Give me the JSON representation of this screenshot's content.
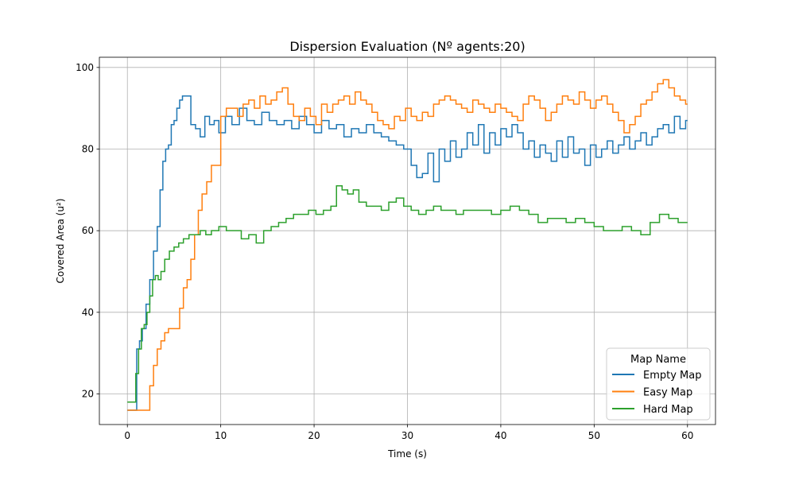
{
  "chart_data": {
    "type": "line",
    "title": "Dispersion Evaluation (Nº agents:20)",
    "xlabel": "Time (s)",
    "ylabel": "Covered Area (u²)",
    "xlim": [
      -3,
      63
    ],
    "ylim": [
      12.5,
      102.5
    ],
    "xticks": [
      0,
      10,
      20,
      30,
      40,
      50,
      60
    ],
    "yticks": [
      20,
      40,
      60,
      80,
      100
    ],
    "grid": true,
    "step": "post",
    "legend": {
      "title": "Map Name",
      "placement": "lower right"
    },
    "series": [
      {
        "name": "Empty Map",
        "color": "#1f77b4",
        "x": [
          0,
          0.8,
          1.0,
          1.3,
          1.6,
          2.0,
          2.4,
          2.8,
          3.2,
          3.5,
          3.8,
          4.1,
          4.4,
          4.7,
          5.0,
          5.3,
          5.6,
          5.9,
          6.3,
          6.8,
          7.3,
          7.8,
          8.3,
          8.8,
          9.3,
          9.8,
          10.5,
          11.2,
          12.0,
          12.8,
          13.6,
          14.4,
          15.2,
          16.0,
          16.8,
          17.6,
          18.4,
          19.2,
          20.0,
          20.8,
          21.6,
          22.4,
          23.2,
          24.0,
          24.8,
          25.6,
          26.4,
          27.2,
          28.0,
          28.8,
          29.6,
          30.4,
          31.0,
          31.6,
          32.2,
          32.8,
          33.4,
          34.0,
          34.6,
          35.2,
          35.8,
          36.4,
          37.0,
          37.6,
          38.2,
          38.8,
          39.4,
          40.0,
          40.6,
          41.2,
          41.8,
          42.4,
          43.0,
          43.6,
          44.2,
          44.8,
          45.4,
          46.0,
          46.6,
          47.2,
          47.8,
          48.4,
          49.0,
          49.6,
          50.2,
          50.8,
          51.4,
          52.0,
          52.6,
          53.2,
          53.8,
          54.4,
          55.0,
          55.6,
          56.2,
          56.8,
          57.4,
          58.0,
          58.6,
          59.2,
          59.8
        ],
        "y": [
          16,
          16,
          31,
          33,
          36,
          42,
          48,
          55,
          61,
          70,
          77,
          80,
          81,
          86,
          87,
          90,
          92,
          93,
          93,
          86,
          85,
          83,
          88,
          86,
          87,
          84,
          88,
          86,
          90,
          87,
          86,
          89,
          87,
          86,
          87,
          85,
          88,
          86,
          84,
          87,
          85,
          86,
          83,
          85,
          84,
          86,
          84,
          83,
          82,
          81,
          80,
          76,
          73,
          74,
          79,
          72,
          80,
          77,
          82,
          78,
          80,
          84,
          81,
          86,
          79,
          84,
          81,
          85,
          83,
          86,
          84,
          80,
          82,
          78,
          81,
          79,
          77,
          82,
          78,
          83,
          79,
          80,
          76,
          81,
          78,
          80,
          82,
          79,
          81,
          83,
          80,
          82,
          84,
          81,
          83,
          85,
          86,
          84,
          88,
          85,
          87
        ]
      },
      {
        "name": "Easy Map",
        "color": "#ff7f0e",
        "x": [
          0,
          2.0,
          2.4,
          2.8,
          3.2,
          3.6,
          4.0,
          4.4,
          5.0,
          5.6,
          6.0,
          6.4,
          6.8,
          7.2,
          7.6,
          8.0,
          8.5,
          9.0,
          9.5,
          10.0,
          10.6,
          11.2,
          11.8,
          12.4,
          13.0,
          13.6,
          14.2,
          14.8,
          15.4,
          16.0,
          16.6,
          17.2,
          17.8,
          18.4,
          19.0,
          19.6,
          20.2,
          20.8,
          21.4,
          22.0,
          22.6,
          23.2,
          23.8,
          24.4,
          25.0,
          25.6,
          26.2,
          26.8,
          27.4,
          28.0,
          28.6,
          29.2,
          29.8,
          30.4,
          31.0,
          31.6,
          32.2,
          32.8,
          33.4,
          34.0,
          34.6,
          35.2,
          35.8,
          36.4,
          37.0,
          37.6,
          38.2,
          38.8,
          39.4,
          40.0,
          40.6,
          41.2,
          41.8,
          42.4,
          43.0,
          43.6,
          44.2,
          44.8,
          45.4,
          46.0,
          46.6,
          47.2,
          47.8,
          48.4,
          49.0,
          49.6,
          50.2,
          50.8,
          51.4,
          52.0,
          52.6,
          53.2,
          53.8,
          54.4,
          55.0,
          55.6,
          56.2,
          56.8,
          57.4,
          58.0,
          58.6,
          59.2,
          59.8
        ],
        "y": [
          16,
          16,
          22,
          27,
          31,
          33,
          35,
          36,
          36,
          41,
          46,
          48,
          53,
          59,
          65,
          69,
          72,
          76,
          76,
          88,
          90,
          90,
          88,
          91,
          92,
          90,
          93,
          91,
          92,
          94,
          95,
          91,
          88,
          87,
          90,
          88,
          86,
          91,
          89,
          91,
          92,
          93,
          91,
          94,
          92,
          91,
          89,
          87,
          86,
          85,
          88,
          87,
          90,
          88,
          87,
          89,
          88,
          91,
          92,
          93,
          92,
          91,
          90,
          89,
          92,
          91,
          90,
          89,
          91,
          90,
          89,
          88,
          87,
          91,
          93,
          92,
          90,
          87,
          89,
          91,
          93,
          92,
          91,
          94,
          92,
          90,
          92,
          93,
          91,
          89,
          87,
          84,
          86,
          88,
          91,
          92,
          94,
          96,
          97,
          95,
          93,
          92,
          91
        ]
      },
      {
        "name": "Hard Map",
        "color": "#2ca02c",
        "x": [
          0,
          0.6,
          0.9,
          1.2,
          1.5,
          1.8,
          2.1,
          2.4,
          2.7,
          3.0,
          3.3,
          3.6,
          4.0,
          4.5,
          5.0,
          5.5,
          6.0,
          6.6,
          7.2,
          7.8,
          8.4,
          9.0,
          9.8,
          10.6,
          11.4,
          12.2,
          13.0,
          13.8,
          14.6,
          15.4,
          16.2,
          17.0,
          17.8,
          18.6,
          19.4,
          20.2,
          21.0,
          21.8,
          22.4,
          23.0,
          23.6,
          24.2,
          24.8,
          25.6,
          26.4,
          27.2,
          28.0,
          28.8,
          29.6,
          30.4,
          31.2,
          32.0,
          32.8,
          33.6,
          34.4,
          35.2,
          36.0,
          37.0,
          38.0,
          39.0,
          40.0,
          41.0,
          42.0,
          43.0,
          44.0,
          45.0,
          46.0,
          47.0,
          48.0,
          49.0,
          50.0,
          51.0,
          52.0,
          53.0,
          54.0,
          55.0,
          56.0,
          57.0,
          58.0,
          59.0
        ],
        "y": [
          18,
          18,
          25,
          31,
          36,
          37,
          40,
          44,
          48,
          49,
          48,
          50,
          53,
          55,
          56,
          57,
          58,
          59,
          59,
          60,
          59,
          60,
          61,
          60,
          60,
          58,
          59,
          57,
          60,
          61,
          62,
          63,
          64,
          64,
          65,
          64,
          65,
          66,
          71,
          70,
          69,
          70,
          67,
          66,
          66,
          65,
          67,
          68,
          66,
          65,
          64,
          65,
          66,
          65,
          65,
          64,
          65,
          65,
          65,
          64,
          65,
          66,
          65,
          64,
          62,
          63,
          63,
          62,
          63,
          62,
          61,
          60,
          60,
          61,
          60,
          59,
          62,
          64,
          63,
          62
        ]
      }
    ]
  }
}
